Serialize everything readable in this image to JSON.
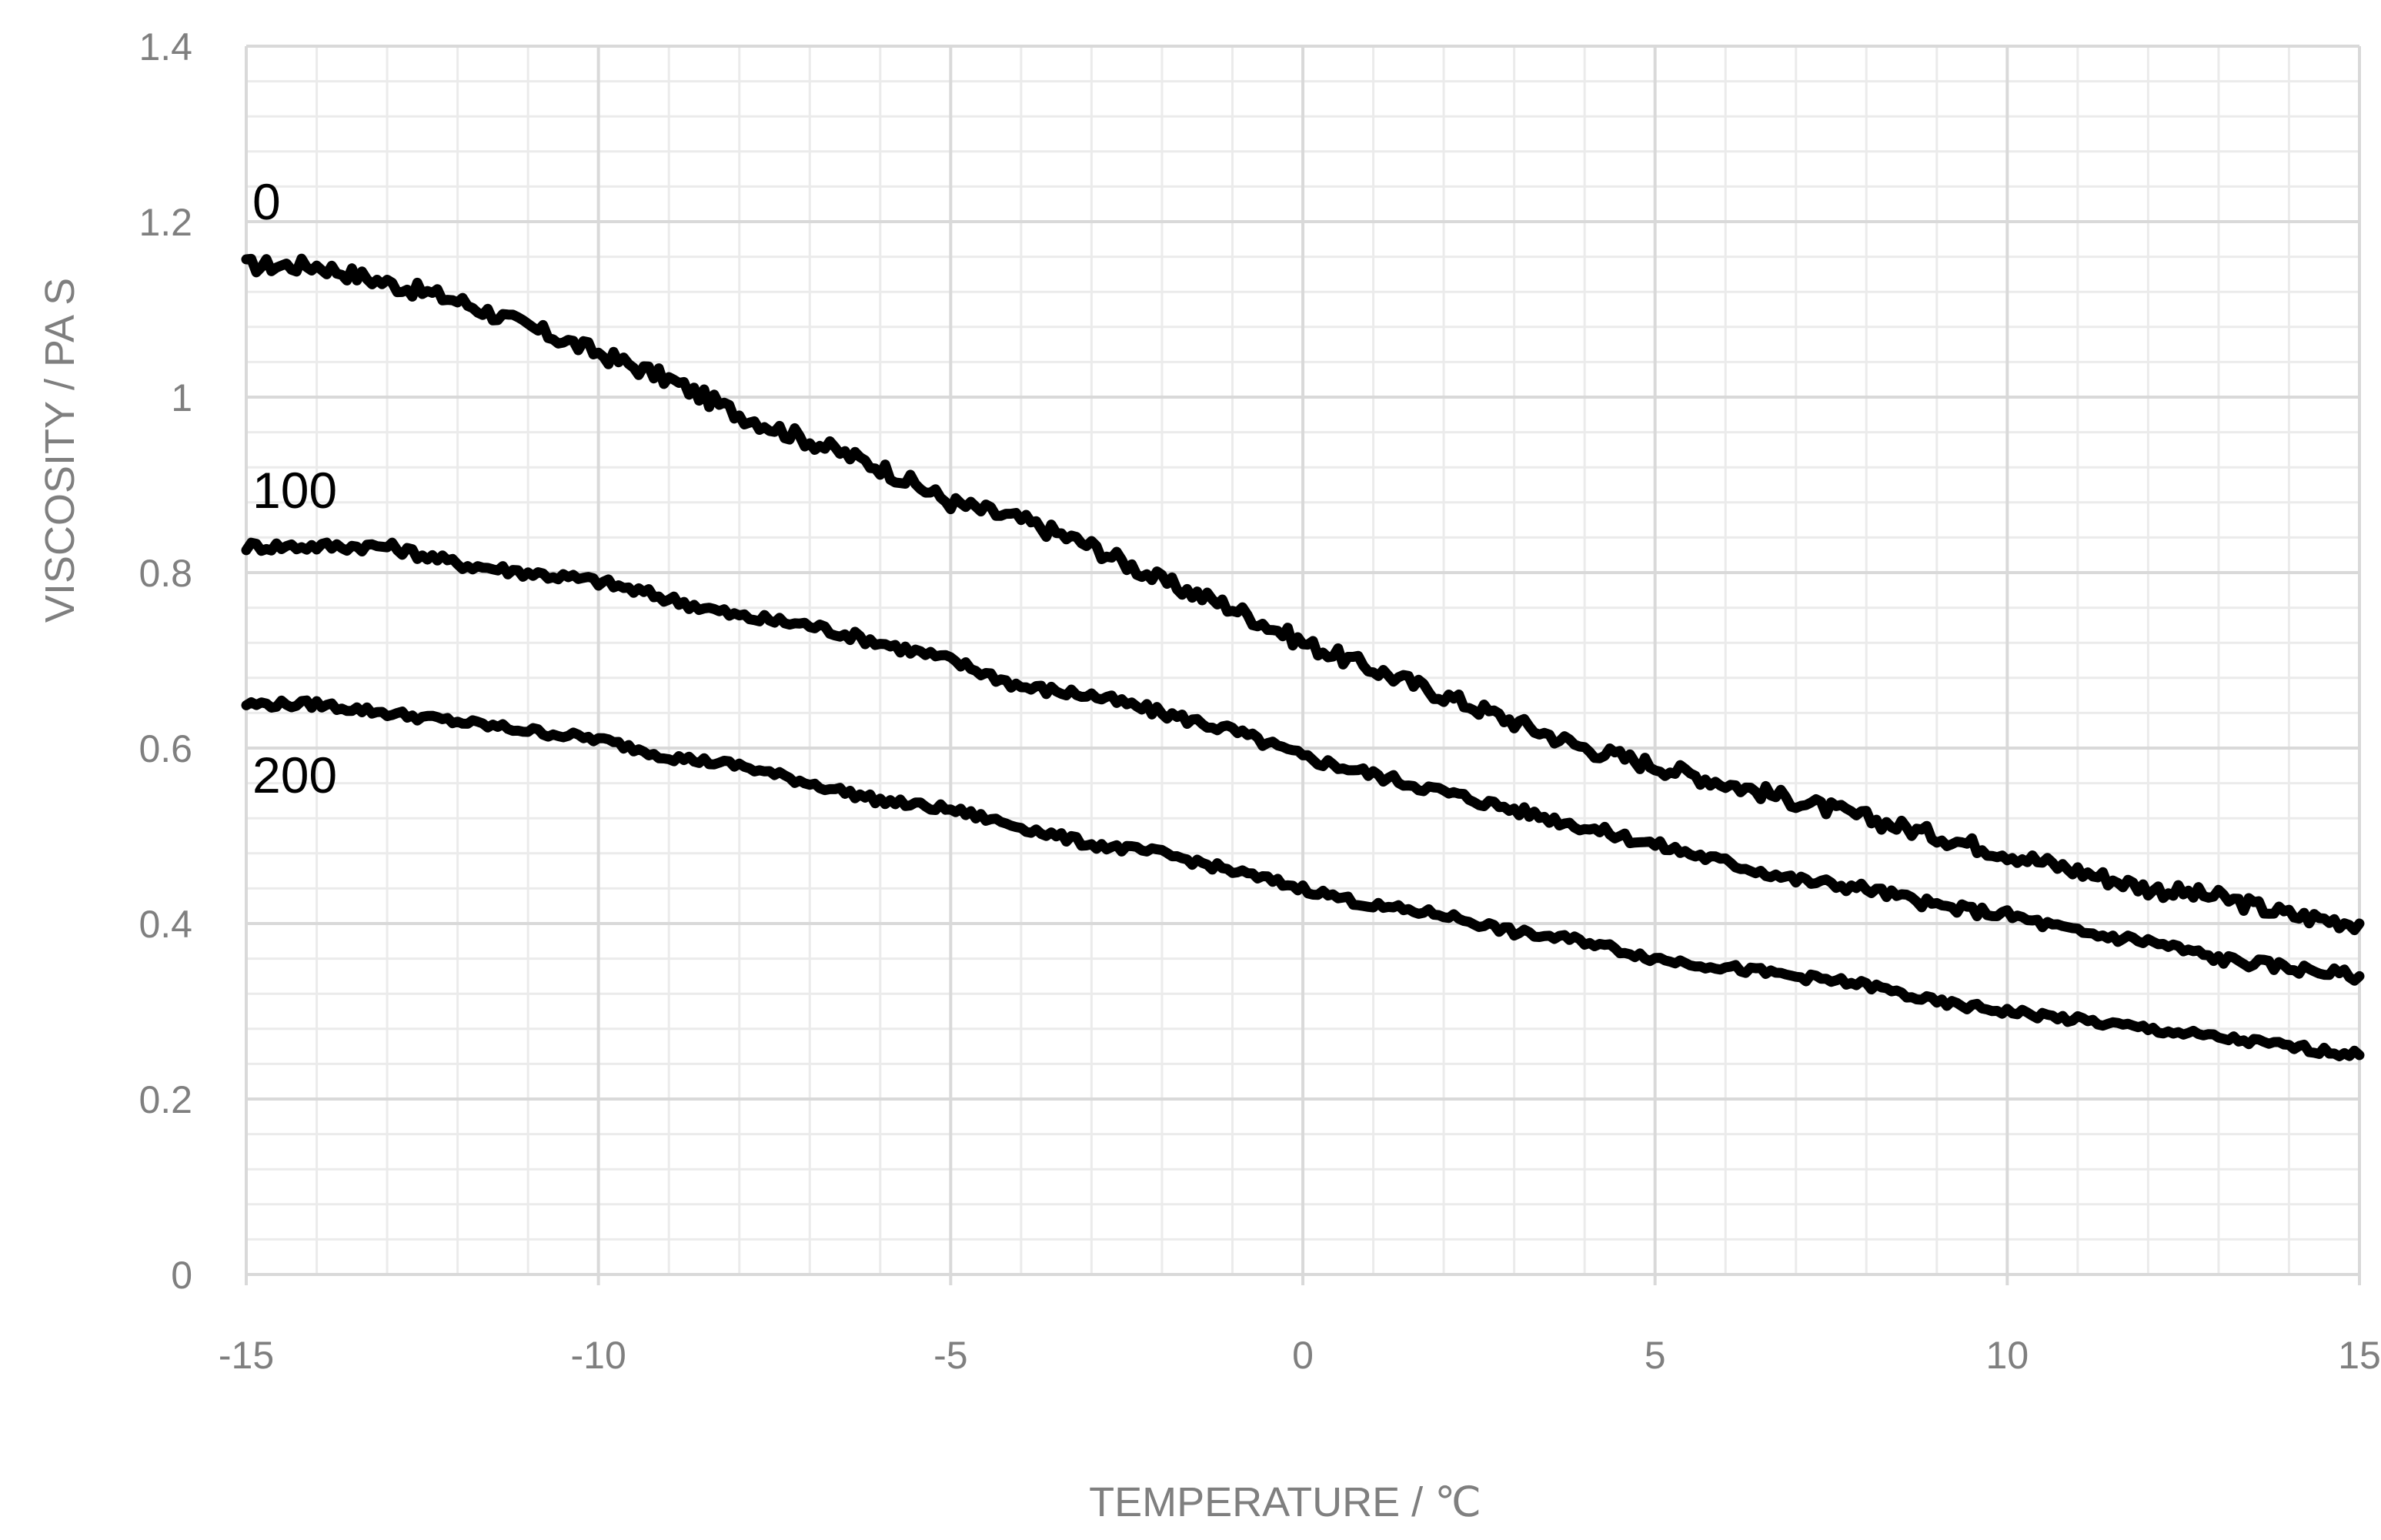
{
  "chart_data": {
    "type": "line",
    "title": "",
    "xlabel": "TEMPERATURE / ℃",
    "ylabel": "VISCOSITY / PA S",
    "xlim": [
      -15,
      15
    ],
    "ylim": [
      0,
      1.4
    ],
    "xticks": [
      -15,
      -10,
      -5,
      0,
      5,
      10,
      15
    ],
    "xtick_labels": [
      "-15",
      "-10",
      "-5",
      "0",
      "5",
      "10",
      "15"
    ],
    "yticks": [
      0,
      0.2,
      0.4,
      0.6,
      0.8,
      1.0,
      1.2,
      1.4
    ],
    "ytick_labels": [
      "0",
      "0.2",
      "0.4",
      "0.6",
      "0.8",
      "1",
      "1.2",
      "1.4"
    ],
    "x_minor_step": 1,
    "y_minor_step": 0.04,
    "grid": true,
    "legend": "none",
    "line_color": "#000000",
    "series": [
      {
        "name": "0",
        "x": [
          -15,
          -14,
          -13,
          -12,
          -11,
          -10,
          -9,
          -8,
          -7,
          -6,
          -5,
          -4,
          -3,
          -2,
          -1,
          0,
          1,
          2,
          3,
          4,
          5,
          6,
          7,
          8,
          9,
          10,
          11,
          12,
          13,
          14,
          15
        ],
        "values": [
          1.15,
          1.15,
          1.13,
          1.11,
          1.08,
          1.05,
          1.02,
          0.98,
          0.95,
          0.92,
          0.88,
          0.86,
          0.83,
          0.79,
          0.76,
          0.72,
          0.69,
          0.66,
          0.63,
          0.6,
          0.58,
          0.56,
          0.54,
          0.52,
          0.5,
          0.48,
          0.46,
          0.44,
          0.43,
          0.41,
          0.4
        ]
      },
      {
        "name": "100",
        "x": [
          -15,
          -14,
          -13,
          -12,
          -11,
          -10,
          -9,
          -8,
          -7,
          -6,
          -5,
          -4,
          -3,
          -2,
          -1,
          0,
          1,
          2,
          3,
          4,
          5,
          6,
          7,
          8,
          9,
          10,
          11,
          12,
          13,
          14,
          15
        ],
        "values": [
          0.83,
          0.83,
          0.83,
          0.81,
          0.8,
          0.79,
          0.77,
          0.75,
          0.74,
          0.72,
          0.7,
          0.67,
          0.66,
          0.64,
          0.62,
          0.59,
          0.57,
          0.55,
          0.53,
          0.51,
          0.49,
          0.47,
          0.45,
          0.44,
          0.42,
          0.41,
          0.39,
          0.38,
          0.36,
          0.35,
          0.34
        ]
      },
      {
        "name": "200",
        "x": [
          -15,
          -14,
          -13,
          -12,
          -11,
          -10,
          -9,
          -8,
          -7,
          -6,
          -5,
          -4,
          -3,
          -2,
          -1,
          0,
          1,
          2,
          3,
          4,
          5,
          6,
          7,
          8,
          9,
          10,
          11,
          12,
          13,
          14,
          15
        ],
        "values": [
          0.65,
          0.65,
          0.64,
          0.63,
          0.62,
          0.61,
          0.59,
          0.58,
          0.56,
          0.54,
          0.53,
          0.51,
          0.49,
          0.48,
          0.46,
          0.44,
          0.42,
          0.41,
          0.39,
          0.38,
          0.36,
          0.35,
          0.34,
          0.33,
          0.31,
          0.3,
          0.29,
          0.28,
          0.27,
          0.26,
          0.25
        ]
      }
    ]
  }
}
